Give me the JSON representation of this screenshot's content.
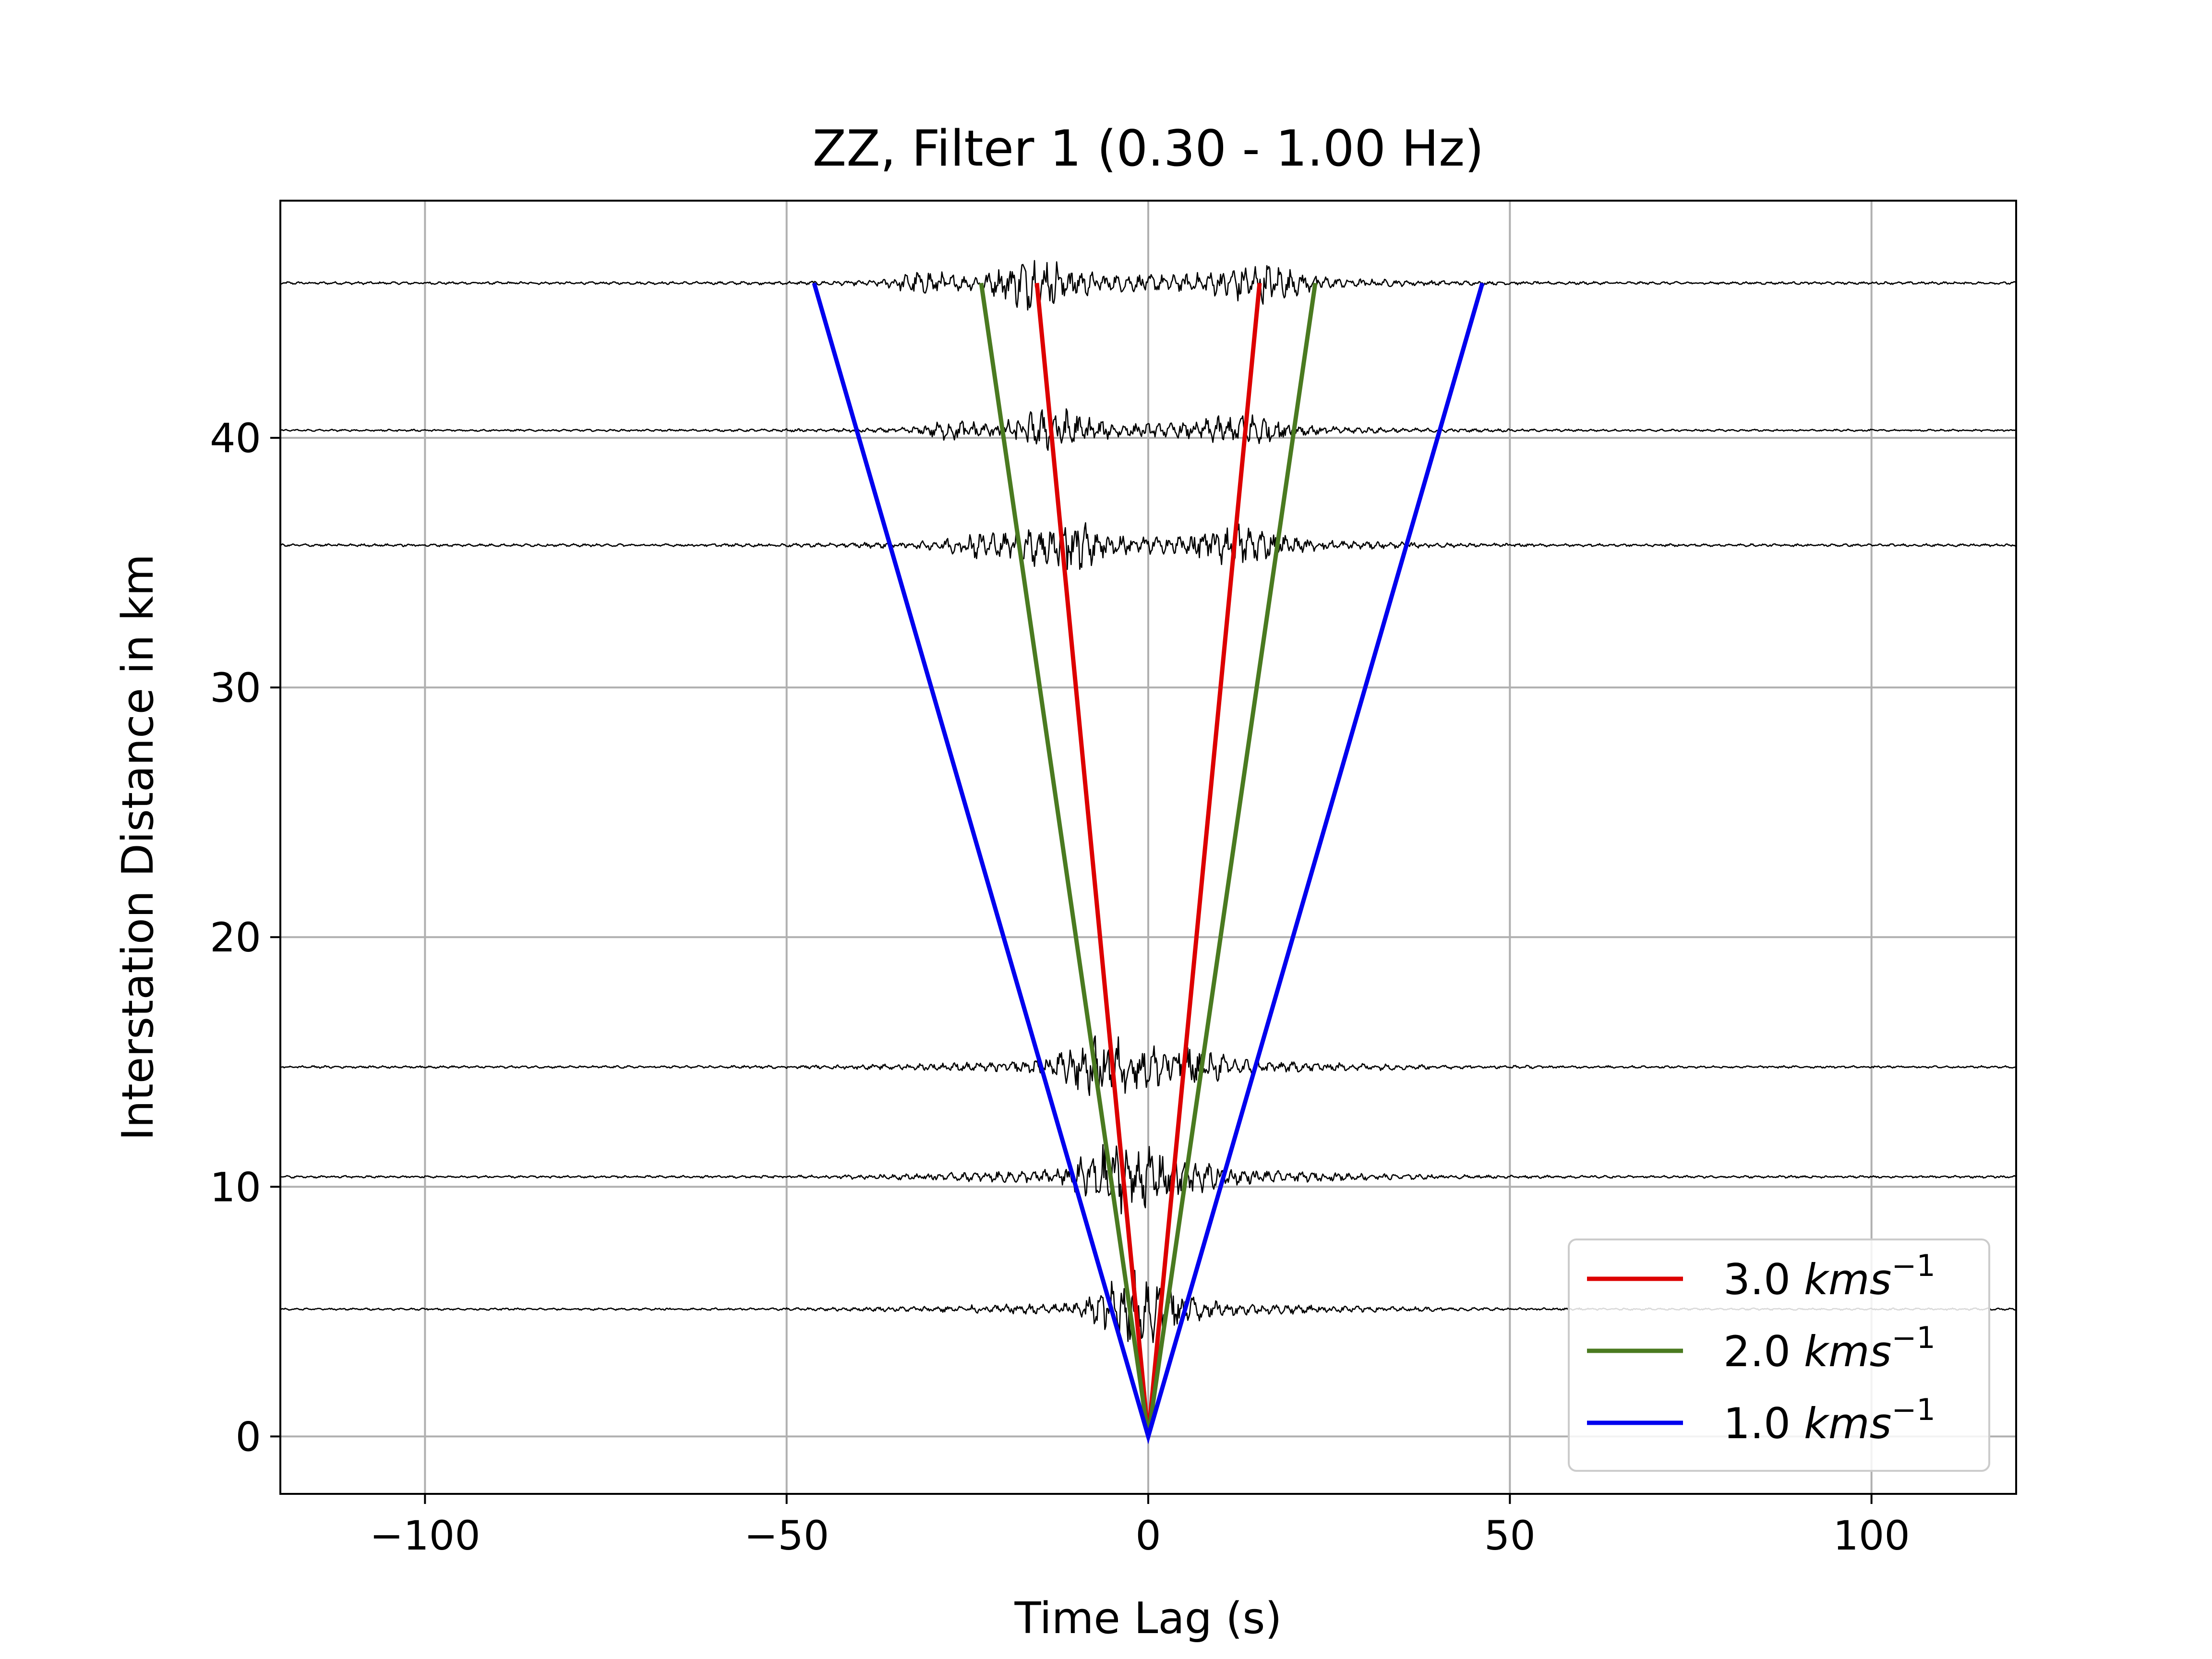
{
  "chart_data": {
    "type": "line",
    "title": "ZZ, Filter 1 (0.30 - 1.00 Hz)",
    "xlabel": "Time Lag (s)",
    "ylabel": "Interstation Distance in km",
    "xlim": [
      -120,
      120
    ],
    "ylim": [
      -2.3,
      49.5
    ],
    "xticks": [
      -100,
      -50,
      0,
      50,
      100
    ],
    "xtick_labels": [
      "−100",
      "−50",
      "0",
      "50",
      "100"
    ],
    "yticks": [
      0,
      10,
      20,
      30,
      40
    ],
    "ytick_labels": [
      "0",
      "10",
      "20",
      "30",
      "40"
    ],
    "grid": true,
    "legend_position": "lower-right",
    "velocity_lines": [
      {
        "velocity": 3.0,
        "label_value": "3.0",
        "label_unit": "kms",
        "label_exp": "−1",
        "color": "#dd0000",
        "x": [
          -15.4,
          0,
          15.4
        ],
        "y": [
          46.2,
          0,
          46.2
        ]
      },
      {
        "velocity": 2.0,
        "label_value": "2.0",
        "label_unit": "kms",
        "label_exp": "−1",
        "color": "#4a7a20",
        "x": [
          -23.1,
          0,
          23.1
        ],
        "y": [
          46.2,
          0,
          46.2
        ]
      },
      {
        "velocity": 1.0,
        "label_value": "1.0",
        "label_unit": "kms",
        "label_exp": "−1",
        "color": "#0000ee",
        "x": [
          -46.2,
          0,
          46.2
        ],
        "y": [
          46.2,
          0,
          46.2
        ]
      }
    ],
    "waveform_traces": [
      {
        "distance_km": 46.2,
        "amplitude_km": 0.9
      },
      {
        "distance_km": 40.3,
        "amplitude_km": 0.7
      },
      {
        "distance_km": 35.7,
        "amplitude_km": 0.9
      },
      {
        "distance_km": 14.8,
        "amplitude_km": 0.8
      },
      {
        "distance_km": 10.4,
        "amplitude_km": 0.8
      },
      {
        "distance_km": 5.1,
        "amplitude_km": 0.7
      }
    ],
    "waveform_color": "#000000"
  }
}
